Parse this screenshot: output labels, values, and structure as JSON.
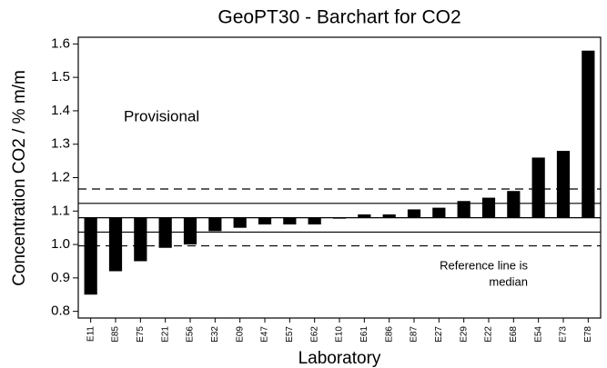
{
  "chart_data": {
    "type": "bar",
    "title": "GeoPT30 - Barchart for CO2",
    "x_label": "Laboratory",
    "y_label": "Concentration CO2 / % m/m",
    "annotations": [
      "Provisional"
    ],
    "note_lines": [
      "Reference line is",
      "median"
    ],
    "categories": [
      "E11",
      "E85",
      "E75",
      "E21",
      "E56",
      "E32",
      "E09",
      "E47",
      "E57",
      "E62",
      "E10",
      "E61",
      "E86",
      "E87",
      "E27",
      "E29",
      "E22",
      "E68",
      "E54",
      "E73",
      "E78"
    ],
    "values": [
      0.85,
      0.92,
      0.95,
      0.99,
      1.0,
      1.04,
      1.05,
      1.06,
      1.06,
      1.06,
      1.08,
      1.09,
      1.09,
      1.105,
      1.11,
      1.13,
      1.14,
      1.16,
      1.26,
      1.28,
      1.58
    ],
    "color": "#000000",
    "median": 1.08,
    "lines": [
      {
        "value": 1.123,
        "style": "solid"
      },
      {
        "value": 1.037,
        "style": "solid"
      },
      {
        "value": 1.166,
        "style": "dashed"
      },
      {
        "value": 0.996,
        "style": "dashed"
      }
    ],
    "ylim": [
      0.78,
      1.62
    ],
    "yticks": [
      0.8,
      0.9,
      {
        "value": 1,
        "label": "1.0"
      },
      1.1,
      1.2,
      1.3,
      1.4,
      1.5,
      1.6
    ]
  }
}
